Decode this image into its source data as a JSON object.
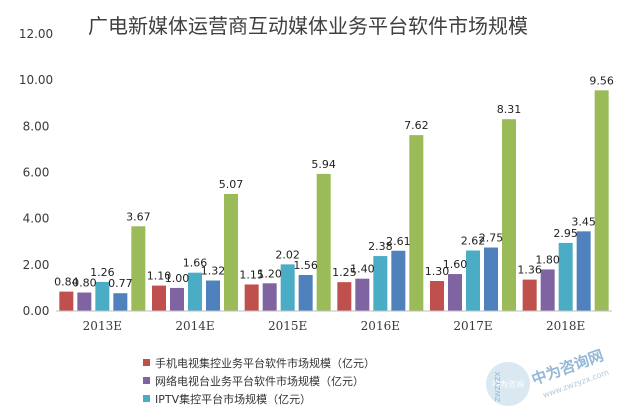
{
  "chart_data": {
    "type": "bar",
    "title": "广电新媒体运营商互动媒体业务平台软件市场规模",
    "categories": [
      "2013E",
      "2014E",
      "2015E",
      "2016E",
      "2017E",
      "2018E"
    ],
    "series": [
      {
        "name": "手机电视集控业务平台软件市场规模（亿元）",
        "color": "#c0504d",
        "values": [
          0.84,
          1.1,
          1.15,
          1.25,
          1.3,
          1.36
        ],
        "labels": [
          "0.84",
          "1.10",
          "1.15",
          "1.25",
          "1.30",
          "1.36"
        ]
      },
      {
        "name": "网络电视台业务平台软件市场规模（亿元）",
        "color": "#8064a2",
        "values": [
          0.8,
          1.0,
          1.2,
          1.4,
          1.6,
          1.8
        ],
        "labels": [
          "0.80",
          "1.00",
          "1.20",
          "1.40",
          "1.60",
          "1.80"
        ]
      },
      {
        "name": "IPTV集控平台市场规模（亿元）",
        "color": "#4bacc6",
        "values": [
          1.26,
          1.66,
          2.02,
          2.38,
          2.62,
          2.95
        ],
        "labels": [
          "1.26",
          "1.66",
          "2.02",
          "2.38",
          "2.62",
          "2.95"
        ]
      },
      {
        "name": "",
        "color": "#4f81bd",
        "values": [
          0.77,
          1.32,
          1.56,
          2.61,
          2.75,
          3.45
        ],
        "labels": [
          "0.77",
          "1.32",
          "1.56",
          "2.61",
          "2.75",
          "3.45"
        ]
      },
      {
        "name": "",
        "color": "#9bbb59",
        "values": [
          3.67,
          5.07,
          5.94,
          7.62,
          8.31,
          9.56
        ],
        "labels": [
          "3.67",
          "5.07",
          "5.94",
          "7.62",
          "8.31",
          "9.56"
        ]
      }
    ],
    "yticks": [
      "0.00",
      "2.00",
      "4.00",
      "6.00",
      "8.00",
      "10.00",
      "12.00"
    ],
    "ylim": [
      0,
      12
    ],
    "xlabel": "",
    "ylabel": "",
    "grid": false,
    "legend": "bottom"
  },
  "watermark": {
    "seal_text": "中为咨询",
    "site_cn": "中为咨询网",
    "site_url": "www.zwzyzx.com",
    "badge_text": "ZWZYZX"
  }
}
